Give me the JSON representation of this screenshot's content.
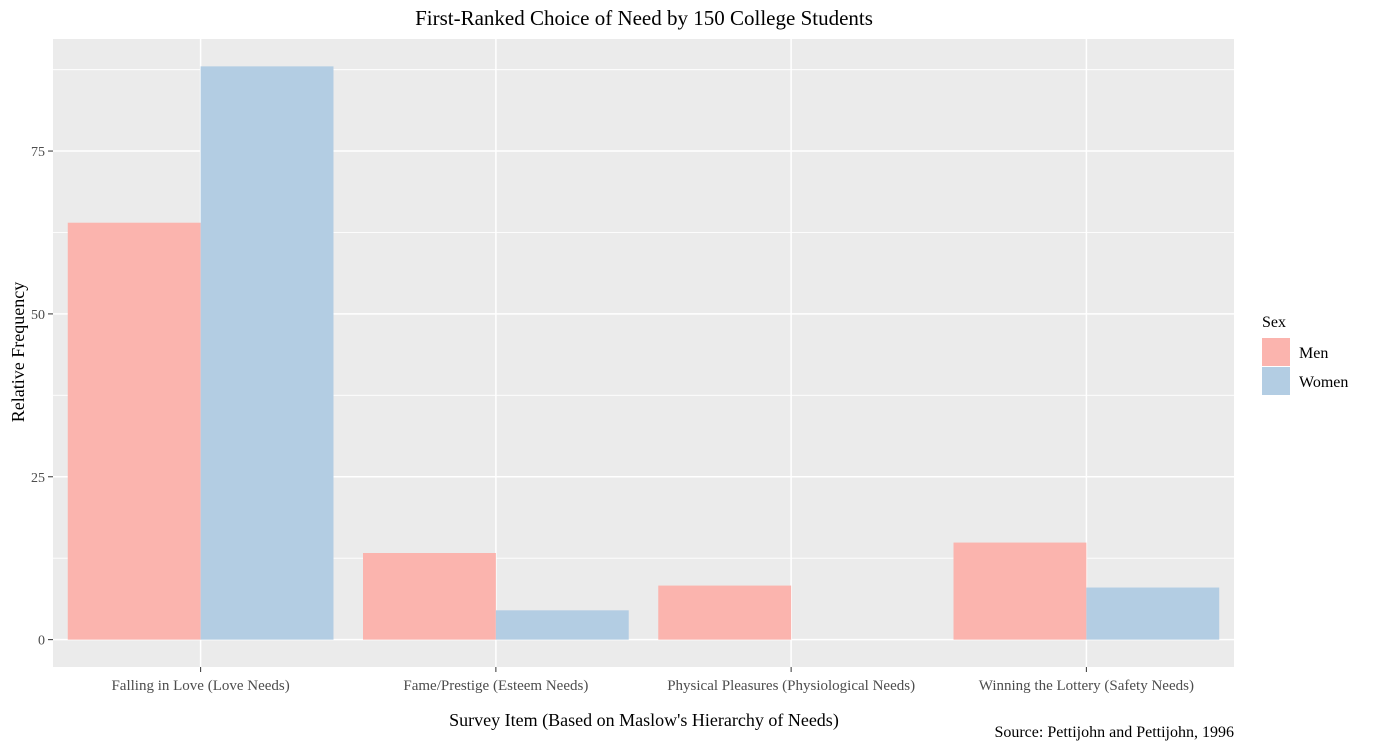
{
  "chart_data": {
    "type": "bar",
    "title": "First-Ranked Choice of Need by 150 College Students",
    "xlabel": "Survey Item (Based on Maslow's Hierarchy of Needs)",
    "ylabel": "Relative Frequency",
    "categories": [
      "Falling in Love (Love Needs)",
      "Fame/Prestige (Esteem Needs)",
      "Physical Pleasures (Physiological Needs)",
      "Winning the Lottery (Safety Needs)"
    ],
    "series": [
      {
        "name": "Men",
        "color": "#FBB4AE",
        "values": [
          64,
          13.3,
          8.3,
          14.9
        ]
      },
      {
        "name": "Women",
        "color": "#B3CDE3",
        "values": [
          88,
          4.5,
          0,
          8
        ]
      }
    ],
    "yticks": [
      "0",
      "25",
      "50",
      "75"
    ],
    "ylim": [
      -4.2,
      92.2
    ],
    "grid": true,
    "legend": {
      "title": "Sex",
      "placement": "right"
    },
    "caption": "Source: Pettijohn and Pettijohn, 1996",
    "colors": {
      "panel": "#EBEBEB",
      "grid": "#FFFFFF"
    }
  }
}
